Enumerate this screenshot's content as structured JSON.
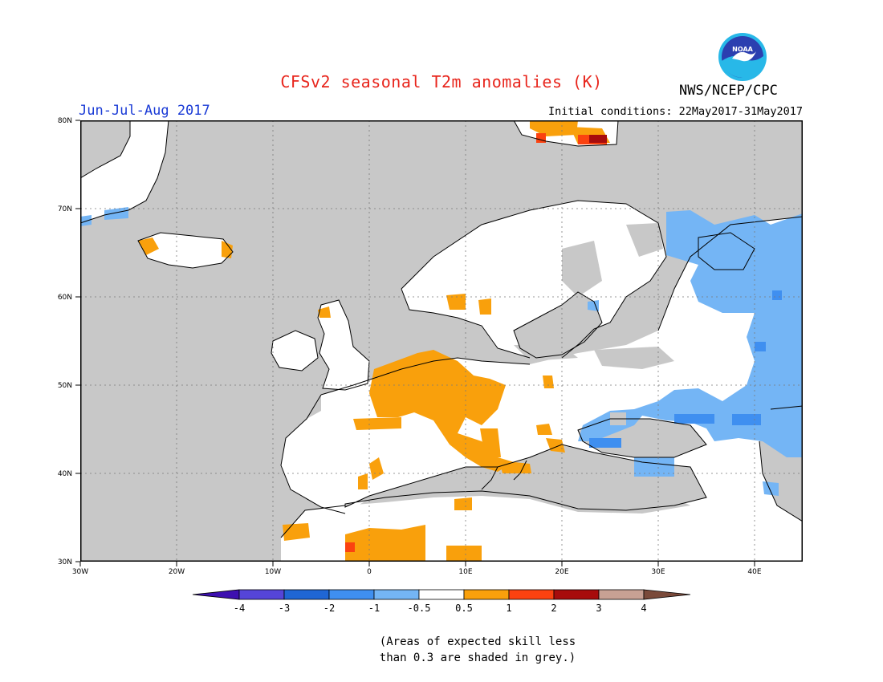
{
  "header": {
    "title": "CFSv2 seasonal T2m anomalies (K)",
    "period": "Jun-Jul-Aug 2017",
    "initial_conditions": "Initial conditions: 22May2017-31May2017",
    "agency": "NWS/NCEP/CPC",
    "logo_text": "NOAA"
  },
  "map": {
    "projection": "lon-lat",
    "lon_range": [
      -30,
      45
    ],
    "lat_range": [
      30,
      80
    ],
    "colors": {
      "skill_grey": "#c8c8c8",
      "land_white": "#ffffff",
      "coast": "#000000"
    },
    "lon_ticks": [
      "30W",
      "20W",
      "10W",
      "0",
      "10E",
      "20E",
      "30E",
      "40E"
    ],
    "lat_ticks": [
      "30N",
      "40N",
      "50N",
      "60N",
      "70N",
      "80N"
    ]
  },
  "legend": {
    "labels": [
      "-4",
      "-3",
      "-2",
      "-1",
      "-0.5",
      "0.5",
      "1",
      "2",
      "3",
      "4"
    ],
    "colors": [
      "#3d10b0",
      "#5545d8",
      "#1f66d4",
      "#3f8ff0",
      "#74b5f5",
      "#ffffff",
      "#f9a00c",
      "#fb4210",
      "#a70c0c",
      "#c8a194",
      "#7a4a3a"
    ]
  },
  "note": {
    "line1": "(Areas of expected skill less",
    "line2": "than 0.3 are shaded in grey.)"
  }
}
